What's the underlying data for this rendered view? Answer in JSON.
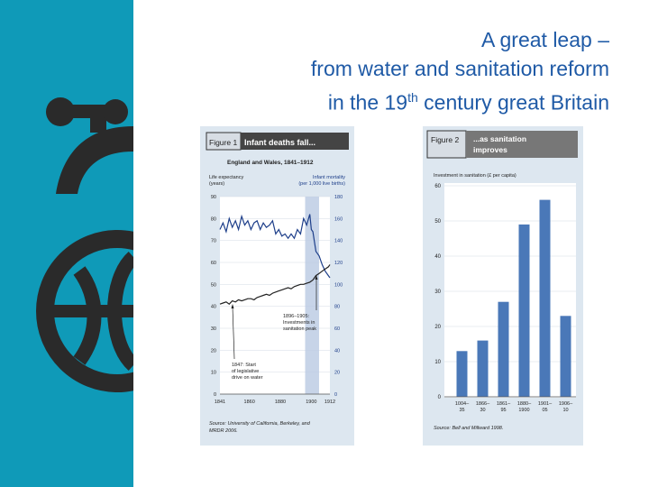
{
  "slide": {
    "title_line1": "A great leap –",
    "title_line2": "from water and sanitation reform",
    "title_line3_pre": "in the 19",
    "title_line3_sup": "th",
    "title_line3_post": " century great Britain"
  },
  "colors": {
    "sidebar": "#0f9ab8",
    "title": "#1f5aa6",
    "bar": "#4a78b8",
    "life_line": "#1e3f8a",
    "infant_line": "#222222"
  },
  "figure1": {
    "label": "Figure 1",
    "heading": "Infant deaths fall...",
    "subtitle": "England and Wales, 1841–1912",
    "left_axis_line1": "Life expectancy",
    "left_axis_line2": "(years)",
    "right_axis_line1": "Infant mortality",
    "right_axis_line2": "(per 1,000 live births)",
    "annotation_1847": [
      "1847: Start",
      "of legislative",
      "drive on water"
    ],
    "annotation_1896": [
      "1896–1905:",
      "Investments in",
      "sanitation peak"
    ],
    "source": [
      "Source: University of California, Berkeley, and",
      "MRDR 2006."
    ]
  },
  "figure2": {
    "label": "Figure 2",
    "heading_line1": "...as sanitation",
    "heading_line2": "improves",
    "ylabel": "Investment in sanitation (£ per capita)",
    "source": "Source: Bell and Millward 1998."
  },
  "chart_data": [
    {
      "type": "line",
      "title": "Infant deaths fall...",
      "subtitle": "England and Wales, 1841–1912",
      "x_ticks": [
        "1841",
        "1860",
        "1880",
        "1900",
        "1912"
      ],
      "xlim": [
        1841,
        1912
      ],
      "left_ticks": [
        "90",
        "80",
        "70",
        "60",
        "50",
        "40",
        "30",
        "20",
        "10",
        "0"
      ],
      "right_ticks": [
        "180",
        "160",
        "140",
        "120",
        "100",
        "80",
        "60",
        "40",
        "20",
        "0"
      ],
      "ylim_left": [
        0,
        90
      ],
      "ylim_right": [
        0,
        180
      ],
      "highlight_span": [
        1896,
        1905
      ],
      "series": [
        {
          "axis": "right",
          "x": [
            1841,
            1843,
            1845,
            1847,
            1849,
            1851,
            1853,
            1855,
            1857,
            1859,
            1861,
            1863,
            1865,
            1867,
            1869,
            1871,
            1873,
            1875,
            1877,
            1879,
            1881,
            1883,
            1885,
            1887,
            1889,
            1891,
            1893,
            1895,
            1897,
            1899,
            1900,
            1901,
            1903,
            1905,
            1907,
            1909,
            1911,
            1912
          ],
          "values": [
            150,
            156,
            148,
            160,
            152,
            158,
            150,
            162,
            154,
            158,
            150,
            156,
            158,
            150,
            156,
            152,
            154,
            158,
            146,
            150,
            144,
            146,
            142,
            146,
            142,
            150,
            146,
            160,
            154,
            164,
            150,
            148,
            130,
            126,
            118,
            112,
            108,
            106
          ]
        },
        {
          "axis": "left",
          "x": [
            1841,
            1843,
            1845,
            1847,
            1849,
            1851,
            1853,
            1855,
            1857,
            1859,
            1861,
            1863,
            1865,
            1867,
            1869,
            1871,
            1873,
            1875,
            1877,
            1879,
            1881,
            1883,
            1885,
            1887,
            1889,
            1891,
            1893,
            1895,
            1897,
            1899,
            1901,
            1903,
            1905,
            1907,
            1909,
            1911,
            1912
          ],
          "values": [
            41,
            41.5,
            42,
            41,
            42.5,
            42,
            43,
            42.5,
            43,
            43.5,
            43.5,
            43,
            44,
            44.5,
            45,
            45.5,
            45,
            46,
            46.5,
            47,
            47.5,
            48,
            48.5,
            48,
            49,
            49.5,
            50,
            50,
            50.5,
            51,
            52,
            54,
            55,
            56,
            57,
            58,
            59
          ]
        }
      ]
    },
    {
      "type": "bar",
      "title": "...as sanitation improves",
      "ylabel": "Investment in sanitation (£ per capita)",
      "categories": [
        [
          "1004–",
          "35"
        ],
        [
          "1866–",
          "30"
        ],
        [
          "1861–",
          "95"
        ],
        [
          "1880–",
          "1900"
        ],
        [
          "1901–",
          "05"
        ],
        [
          "1906–",
          "10"
        ]
      ],
      "values": [
        13,
        16,
        27,
        49,
        56,
        23
      ],
      "y_ticks": [
        "60",
        "50",
        "40",
        "30",
        "20",
        "10",
        "0"
      ],
      "ylim": [
        0,
        60
      ]
    }
  ]
}
